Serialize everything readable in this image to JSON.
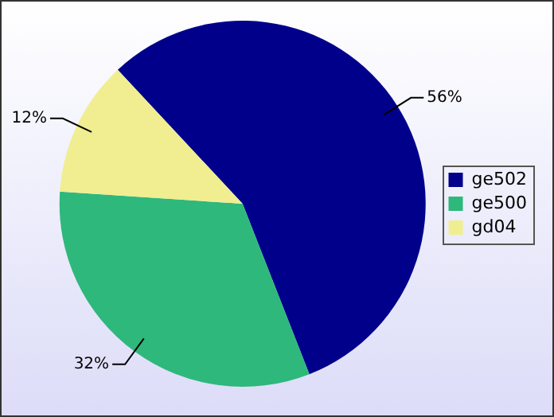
{
  "chart_data": {
    "type": "pie",
    "categories": [
      "ge502",
      "ge500",
      "gd04"
    ],
    "values": [
      56,
      32,
      12
    ],
    "colors": [
      "#00008b",
      "#2eb87c",
      "#f0ee90"
    ],
    "value_labels": [
      "56%",
      "32%",
      "12%"
    ],
    "legend": "right"
  }
}
